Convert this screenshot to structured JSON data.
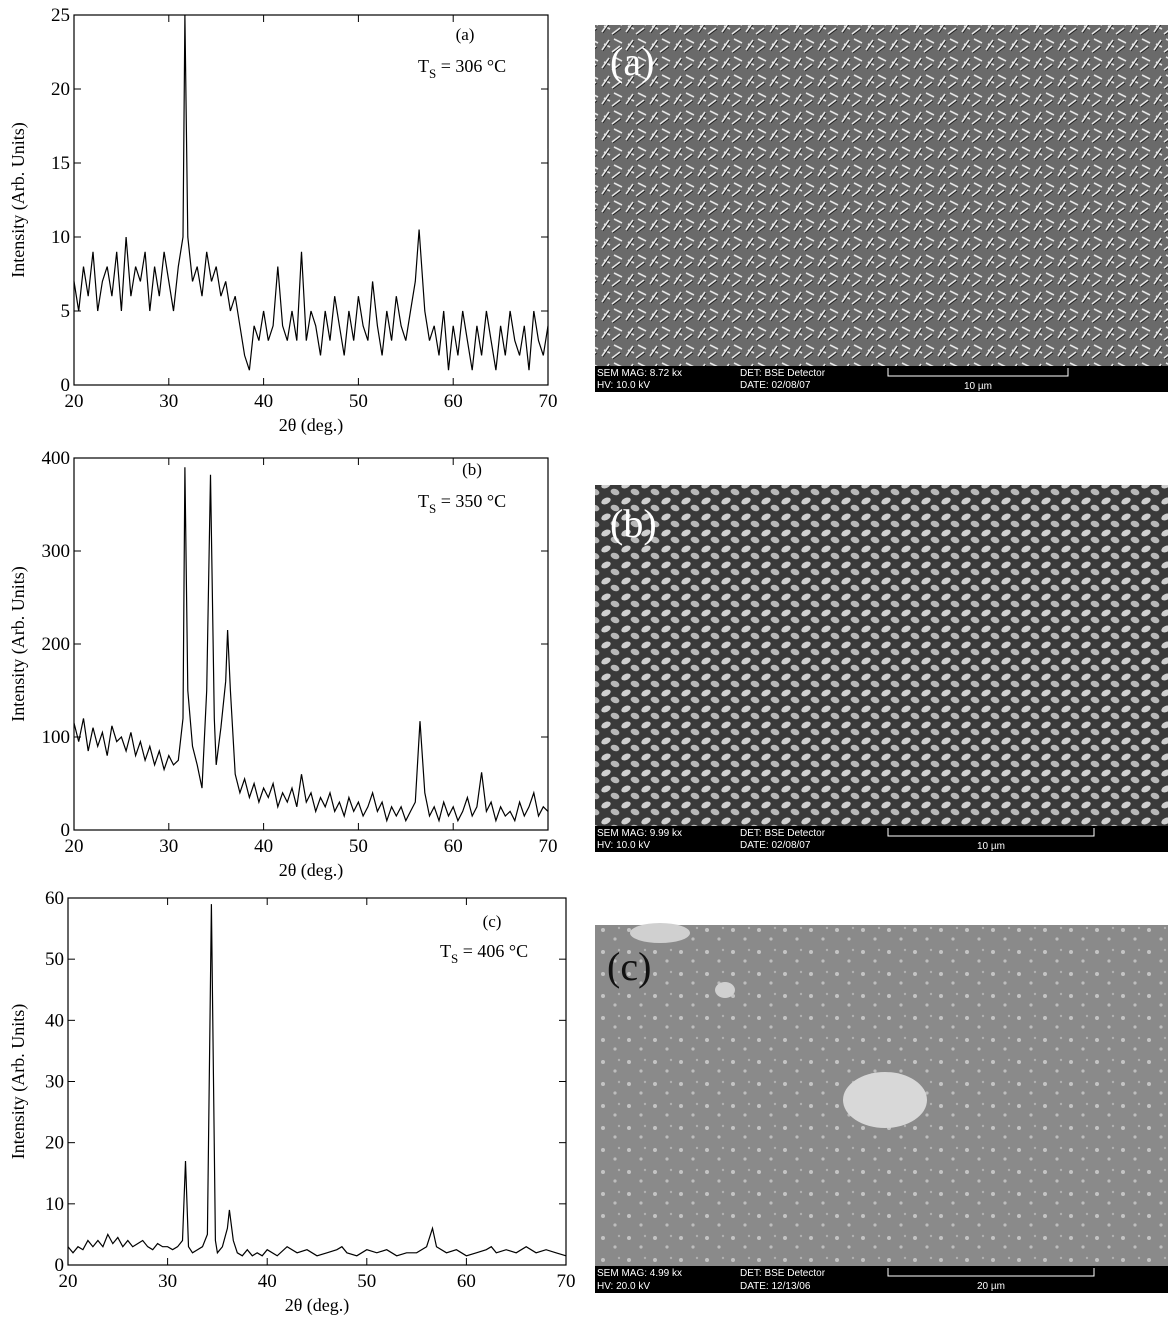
{
  "chart_data": [
    {
      "type": "line",
      "label": "(a)",
      "annotation": [
        "T",
        "S",
        " = 306 °C"
      ],
      "xlabel": "2θ (deg.)",
      "ylabel": "Intensity (Arb. Units)",
      "color": "#000000",
      "xlim": [
        20,
        70
      ],
      "xticks": [
        20,
        30,
        40,
        50,
        60,
        70
      ],
      "ylim": [
        0,
        25
      ],
      "yticks": [
        0,
        5,
        10,
        15,
        20,
        25
      ],
      "x": [
        20,
        20.5,
        21,
        21.5,
        22,
        22.5,
        23,
        23.5,
        24,
        24.5,
        25,
        25.5,
        26,
        26.5,
        27,
        27.5,
        28,
        28.5,
        29,
        29.5,
        30,
        30.5,
        31,
        31.5,
        31.7,
        32,
        32.5,
        33,
        33.5,
        34,
        34.5,
        35,
        35.5,
        36,
        36.5,
        37,
        37.5,
        38,
        38.5,
        39,
        39.5,
        40,
        40.5,
        41,
        41.5,
        42,
        42.5,
        43,
        43.5,
        44,
        44.5,
        45,
        45.5,
        46,
        46.5,
        47,
        47.5,
        48,
        48.5,
        49,
        49.5,
        50,
        50.5,
        51,
        51.5,
        52,
        52.5,
        53,
        53.5,
        54,
        54.5,
        55,
        55.5,
        56,
        56.4,
        57,
        57.5,
        58,
        58.5,
        59,
        59.5,
        60,
        60.5,
        61,
        61.5,
        62,
        62.5,
        63,
        63.5,
        64,
        64.5,
        65,
        65.5,
        66,
        66.5,
        67,
        67.5,
        68,
        68.5,
        69,
        69.5,
        70
      ],
      "values": [
        7,
        5,
        8,
        6,
        9,
        5,
        7,
        8,
        6,
        9,
        5,
        10,
        6,
        8,
        7,
        9,
        5,
        8,
        6,
        9,
        7,
        5,
        8,
        10,
        25,
        10,
        7,
        8,
        6,
        9,
        7,
        8,
        6,
        7,
        5,
        6,
        4,
        2,
        1,
        4,
        3,
        5,
        3,
        4,
        8,
        4,
        3,
        5,
        3,
        9,
        3,
        5,
        4,
        2,
        5,
        3,
        6,
        4,
        2,
        5,
        3,
        6,
        4,
        3,
        7,
        4,
        2,
        5,
        3,
        6,
        4,
        3,
        5,
        7,
        10.5,
        5,
        3,
        4,
        2,
        5,
        1,
        4,
        2,
        5,
        3,
        1,
        4,
        2,
        5,
        3,
        1,
        4,
        2,
        5,
        3,
        2,
        4,
        1,
        5,
        3,
        2,
        4
      ]
    },
    {
      "type": "line",
      "label": "(b)",
      "annotation": [
        "T",
        "S",
        " = 350 °C"
      ],
      "xlabel": "2θ (deg.)",
      "ylabel": "Intensity (Arb. Units)",
      "color": "#000000",
      "xlim": [
        20,
        70
      ],
      "xticks": [
        20,
        30,
        40,
        50,
        60,
        70
      ],
      "ylim": [
        0,
        400
      ],
      "yticks": [
        0,
        100,
        200,
        300,
        400
      ],
      "x": [
        20,
        20.5,
        21,
        21.5,
        22,
        22.5,
        23,
        23.5,
        24,
        24.5,
        25,
        25.5,
        26,
        26.5,
        27,
        27.5,
        28,
        28.5,
        29,
        29.5,
        30,
        30.5,
        31,
        31.5,
        31.7,
        32,
        32.5,
        33,
        33.5,
        34,
        34.4,
        34.8,
        35,
        35.5,
        36,
        36.2,
        36.5,
        37,
        37.5,
        38,
        38.5,
        39,
        39.5,
        40,
        40.5,
        41,
        41.5,
        42,
        42.5,
        43,
        43.5,
        44,
        44.5,
        45,
        45.5,
        46,
        46.5,
        47,
        47.5,
        48,
        48.5,
        49,
        49.5,
        50,
        50.5,
        51,
        51.5,
        52,
        52.5,
        53,
        53.5,
        54,
        54.5,
        55,
        55.5,
        56,
        56.5,
        57,
        57.5,
        58,
        58.5,
        59,
        59.5,
        60,
        60.5,
        61,
        61.5,
        62,
        62.5,
        63,
        63.5,
        64,
        64.5,
        65,
        65.5,
        66,
        66.5,
        67,
        67.5,
        68,
        68.5,
        69,
        69.5,
        70
      ],
      "values": [
        115,
        95,
        120,
        85,
        110,
        90,
        105,
        80,
        112,
        95,
        100,
        85,
        105,
        80,
        95,
        75,
        90,
        70,
        85,
        65,
        80,
        70,
        75,
        120,
        390,
        150,
        90,
        70,
        45,
        150,
        382,
        120,
        70,
        110,
        160,
        215,
        150,
        60,
        40,
        55,
        35,
        50,
        30,
        45,
        35,
        50,
        25,
        40,
        30,
        45,
        25,
        60,
        30,
        40,
        20,
        35,
        25,
        40,
        20,
        30,
        15,
        35,
        20,
        30,
        15,
        25,
        40,
        20,
        30,
        10,
        25,
        15,
        25,
        10,
        20,
        30,
        117,
        40,
        15,
        25,
        10,
        30,
        15,
        25,
        10,
        20,
        35,
        15,
        25,
        62,
        20,
        30,
        10,
        25,
        15,
        20,
        10,
        30,
        15,
        25,
        40,
        15,
        25,
        20
      ]
    },
    {
      "type": "line",
      "label": "(c)",
      "annotation": [
        "T",
        "S",
        " = 406 °C"
      ],
      "xlabel": "2θ (deg.)",
      "ylabel": "Intensity (Arb. Units)",
      "color": "#000000",
      "xlim": [
        20,
        70
      ],
      "xticks": [
        20,
        30,
        40,
        50,
        60,
        70
      ],
      "ylim": [
        0,
        60
      ],
      "yticks": [
        0,
        10,
        20,
        30,
        40,
        50,
        60
      ],
      "x": [
        20,
        20.5,
        21,
        21.5,
        22,
        22.5,
        23,
        23.5,
        24,
        24.5,
        25,
        25.5,
        26,
        26.5,
        27,
        27.5,
        28,
        28.5,
        29,
        29.5,
        30,
        30.5,
        31,
        31.5,
        31.8,
        32.1,
        32.5,
        33,
        33.5,
        34,
        34.4,
        34.8,
        35,
        35.5,
        36,
        36.2,
        36.6,
        37,
        37.5,
        38,
        38.5,
        39,
        39.5,
        40,
        41,
        42,
        43,
        44,
        45,
        46,
        47,
        47.5,
        48,
        49,
        50,
        51,
        52,
        53,
        54,
        55,
        56,
        56.6,
        57,
        58,
        59,
        60,
        61,
        62,
        62.5,
        63,
        64,
        65,
        66,
        67,
        68,
        69,
        70
      ],
      "values": [
        3,
        2,
        3,
        2.5,
        4,
        3,
        4,
        3,
        5,
        3.5,
        4.5,
        3,
        4,
        3,
        3.5,
        4,
        3,
        2.5,
        3.5,
        3,
        3,
        2.5,
        3,
        4,
        17,
        3,
        2,
        2.5,
        3,
        5,
        59,
        4,
        2,
        3,
        6,
        9,
        4,
        2,
        1.5,
        2.5,
        1.5,
        2,
        1.5,
        2.5,
        1.5,
        3,
        2,
        2.5,
        1.5,
        2,
        2.5,
        3,
        2,
        1.5,
        2.5,
        2,
        2.5,
        1.5,
        2,
        2,
        3,
        6,
        3,
        2,
        2.5,
        1.5,
        2,
        2.5,
        3,
        2,
        2.5,
        2,
        3,
        2,
        2.5,
        2,
        1.5
      ]
    }
  ],
  "images": [
    {
      "label": "(a)",
      "mag": "SEM MAG: 8.72 kx",
      "det": "DET: BSE Detector",
      "hv": "HV:  10.0 kV",
      "date": "DATE: 02/08/07",
      "scale": "10 µm"
    },
    {
      "label": "(b)",
      "mag": "SEM MAG: 9.99 kx",
      "det": "DET: BSE Detector",
      "hv": "HV:  10.0 kV",
      "date": "DATE: 02/08/07",
      "scale": "10 µm"
    },
    {
      "label": "(c)",
      "mag": "SEM MAG: 4.99 kx",
      "det": "DET: BSE Detector",
      "hv": "HV:  20.0 kV",
      "date": "DATE: 12/13/06",
      "scale": "20 µm"
    }
  ]
}
